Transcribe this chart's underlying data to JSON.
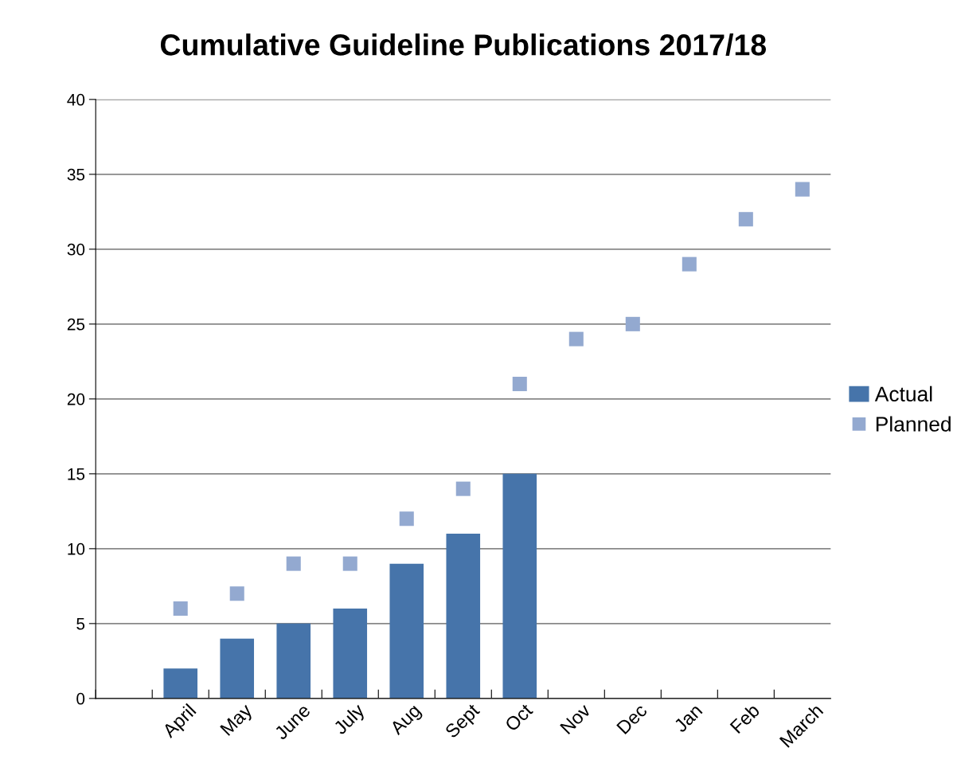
{
  "chart_data": {
    "type": "bar",
    "title": "Cumulative Guideline Publications 2017/18",
    "categories": [
      null,
      "April",
      "May",
      "June",
      "July",
      "Aug",
      "Sept",
      "Oct",
      "Nov",
      "Dec",
      "Jan",
      "Feb",
      "March"
    ],
    "series": [
      {
        "name": "Actual",
        "color": "#4674aa",
        "values": [
          null,
          2,
          4,
          5,
          6,
          9,
          11,
          15,
          null,
          null,
          null,
          null,
          null
        ]
      },
      {
        "name": "Planned",
        "type": "scatter",
        "marker": "square",
        "color": "#93a9d0",
        "values": [
          null,
          6,
          7,
          9,
          9,
          12,
          14,
          21,
          24,
          25,
          29,
          32,
          34
        ]
      }
    ],
    "ylim": [
      0,
      40
    ],
    "yticks": [
      0,
      5,
      10,
      15,
      20,
      25,
      30,
      35,
      40
    ],
    "grid": "y",
    "legend": "right"
  }
}
